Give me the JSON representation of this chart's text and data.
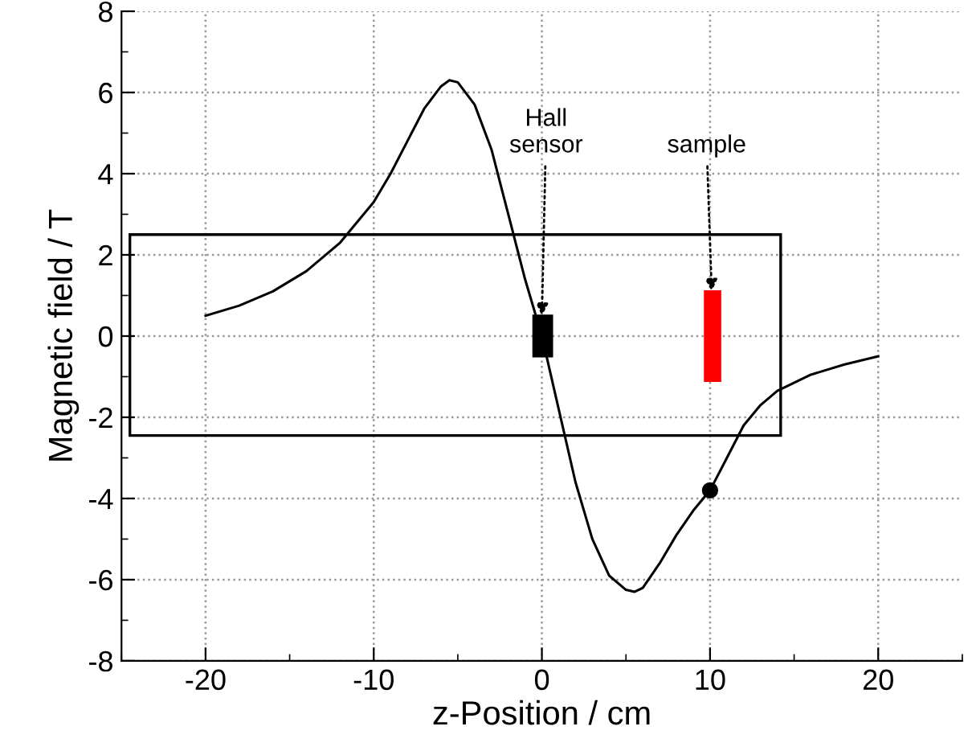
{
  "chart_data": {
    "type": "line",
    "xlabel": "z-Position / cm",
    "ylabel": "Magnetic field / T",
    "series": [
      {
        "color": "#000000",
        "x": [
          -20,
          -18,
          -16,
          -14,
          -12,
          -10,
          -9,
          -8,
          -7,
          -6,
          -5.5,
          -5,
          -4,
          -3,
          -2,
          -1,
          0,
          1,
          2,
          3,
          4,
          5,
          5.5,
          6,
          7,
          8,
          9,
          10,
          11,
          12,
          13,
          14,
          16,
          18,
          20
        ],
        "values": [
          0.5,
          0.75,
          1.1,
          1.6,
          2.3,
          3.3,
          4.0,
          4.8,
          5.6,
          6.15,
          6.3,
          6.25,
          5.7,
          4.6,
          3.0,
          1.4,
          0,
          -1.8,
          -3.6,
          -5.0,
          -5.9,
          -6.25,
          -6.3,
          -6.2,
          -5.6,
          -4.9,
          -4.3,
          -3.8,
          -3.0,
          -2.2,
          -1.7,
          -1.35,
          -0.95,
          -0.7,
          -0.5
        ]
      },
      {
        "type": "scatter",
        "color": "#000000",
        "marker": "circle",
        "x": [
          10
        ],
        "values": [
          -3.8
        ]
      }
    ],
    "annotations": [
      {
        "text": "Hall\nsensor",
        "x": 0,
        "y": 0.5
      },
      "sample"
    ],
    "xlim": [
      -25,
      25
    ],
    "ylim": [
      -8,
      8
    ],
    "xticks": [
      -20,
      -10,
      0,
      10,
      20
    ],
    "yticks": [
      -8,
      -6,
      -4,
      -2,
      0,
      2,
      4,
      6,
      8
    ],
    "grid": true,
    "legend": false
  }
}
